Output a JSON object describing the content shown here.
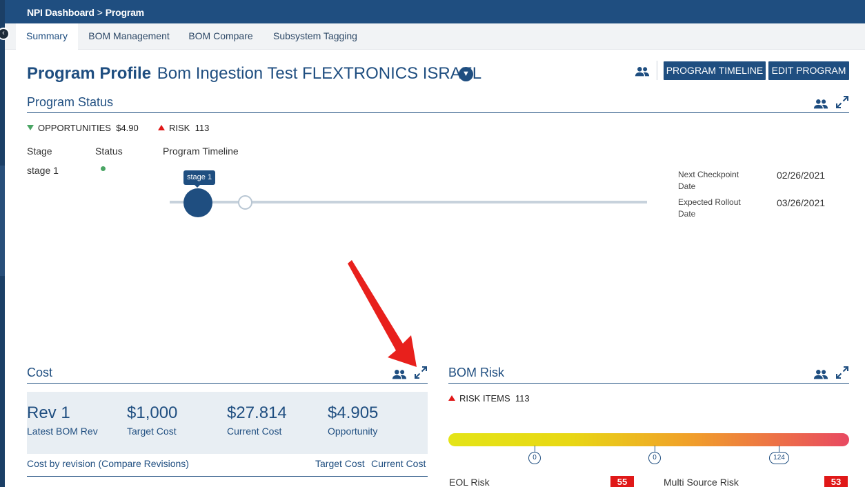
{
  "breadcrumb": {
    "root": "NPI Dashboard",
    "separator": ">",
    "current": "Program"
  },
  "tabs": [
    {
      "label": "Summary",
      "active": true
    },
    {
      "label": "BOM Management"
    },
    {
      "label": "BOM Compare"
    },
    {
      "label": "Subsystem Tagging"
    }
  ],
  "profile": {
    "heading": "Program Profile",
    "program_name": "Bom Ingestion Test FLEXTRONICS ISRAEL",
    "buttons": {
      "timeline": "PROGRAM TIMELINE",
      "edit": "EDIT PROGRAM"
    }
  },
  "program_status": {
    "title": "Program Status",
    "opportunities_label": "OPPORTUNITIES",
    "opportunities_value": "$4.90",
    "risk_label": "RISK",
    "risk_value": "113",
    "columns": {
      "stage": "Stage",
      "status": "Status",
      "timeline": "Program Timeline"
    },
    "row": {
      "stage": "stage 1",
      "status_color": "#4aa564"
    },
    "timeline_tag": "stage 1",
    "next_checkpoint_label": "Next Checkpoint Date",
    "next_checkpoint_value": "02/26/2021",
    "expected_rollout_label": "Expected Rollout Date",
    "expected_rollout_value": "03/26/2021"
  },
  "cost": {
    "title": "Cost",
    "kpis": [
      {
        "value": "Rev 1",
        "label": "Latest BOM Rev"
      },
      {
        "value": "$1,000",
        "label": "Target Cost"
      },
      {
        "value": "$27.814",
        "label": "Current Cost"
      },
      {
        "value": "$4.905",
        "label": "Opportunity"
      }
    ],
    "revision_header": "Cost by revision (Compare Revisions)",
    "target_col": "Target Cost",
    "current_col": "Current Cost"
  },
  "bom_risk": {
    "title": "BOM Risk",
    "risk_items_label": "RISK ITEMS",
    "risk_items_value": "113",
    "markers": [
      "0",
      "0",
      "124"
    ],
    "eol_label": "EOL Risk",
    "eol_value": "55",
    "multi_source_label": "Multi Source Risk",
    "multi_source_value": "53"
  },
  "colors": {
    "brand": "#1f4e80",
    "risk": "#e01818",
    "ok": "#4aa564"
  },
  "icons": [
    "chevron-left-icon",
    "chevron-down-icon",
    "users-icon",
    "expand-icon",
    "red-arrow-annotation"
  ]
}
